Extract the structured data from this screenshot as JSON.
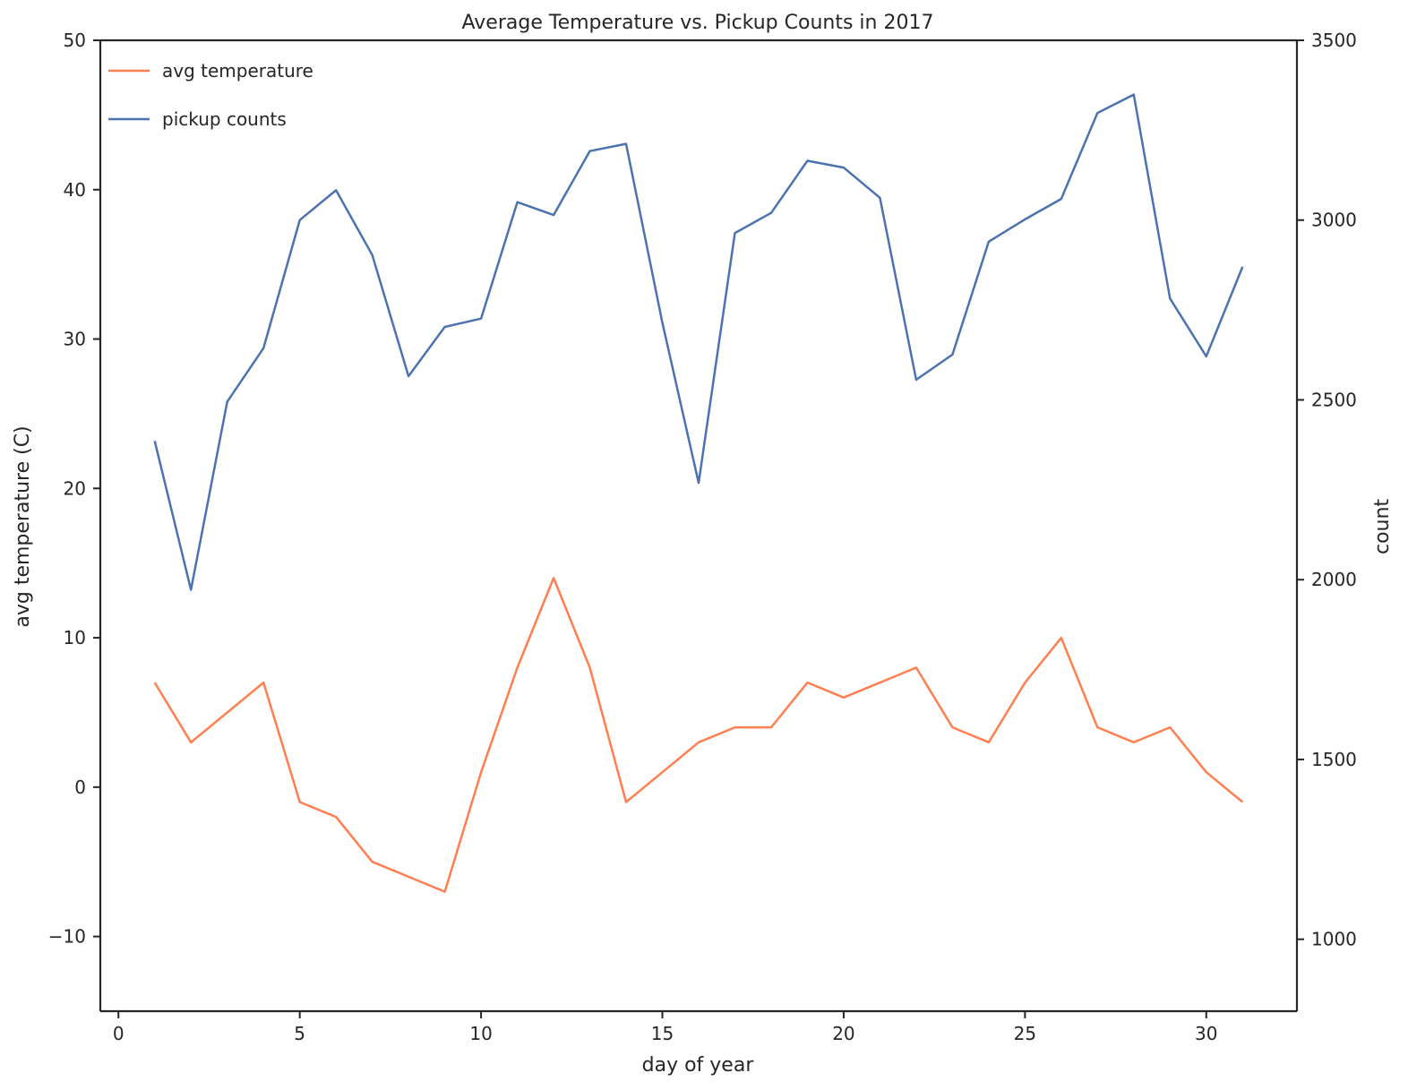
{
  "chart_data": {
    "type": "line",
    "title": "Average Temperature vs. Pickup Counts in 2017",
    "xlabel": "day of year",
    "ylabel": "avg temperature (C)",
    "y2label": "count",
    "xlim": [
      -0.5,
      32.5
    ],
    "ylim": [
      -15,
      50
    ],
    "y2lim": [
      800,
      3500
    ],
    "xticks": [
      0,
      5,
      10,
      15,
      20,
      25,
      30
    ],
    "xtick_labels": [
      "0",
      "5",
      "10",
      "15",
      "20",
      "25",
      "30"
    ],
    "yticks": [
      -10,
      0,
      10,
      20,
      30,
      40,
      50
    ],
    "ytick_labels": [
      "−10",
      "0",
      "10",
      "20",
      "30",
      "40",
      "50"
    ],
    "y2ticks": [
      1000,
      1500,
      2000,
      2500,
      3000,
      3500
    ],
    "y2tick_labels": [
      "1000",
      "1500",
      "2000",
      "2500",
      "3000",
      "3500"
    ],
    "legend_position": "top-left",
    "grid": false,
    "x": [
      1,
      2,
      3,
      4,
      5,
      6,
      7,
      8,
      9,
      10,
      11,
      12,
      13,
      14,
      15,
      16,
      17,
      18,
      19,
      20,
      21,
      22,
      23,
      24,
      25,
      26,
      27,
      28,
      29,
      30,
      31
    ],
    "series": [
      {
        "name": "avg temperature",
        "axis": "left",
        "color": "#ff7f50",
        "values": [
          7,
          3,
          5,
          7,
          -1,
          -2,
          -5,
          -6,
          -7,
          1,
          8,
          14,
          8,
          -1,
          1,
          3,
          4,
          4,
          7,
          6,
          7,
          8,
          4,
          3,
          7,
          10,
          4,
          3,
          4,
          1,
          -1
        ]
      },
      {
        "name": "pickup counts",
        "axis": "right",
        "color": "#4c72b0",
        "values": [
          2386,
          1972,
          2495,
          2644,
          3000,
          3083,
          2903,
          2566,
          2703,
          2726,
          3050,
          3014,
          3192,
          3212,
          2715,
          2269,
          2964,
          3020,
          3165,
          3146,
          3062,
          2556,
          2626,
          2940,
          3002,
          3059,
          3298,
          3349,
          2782,
          2621,
          2870
        ]
      }
    ]
  }
}
